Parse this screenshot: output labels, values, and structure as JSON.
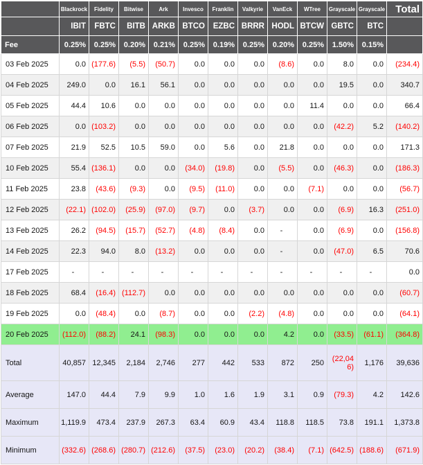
{
  "colors": {
    "header_bg": "#58585a",
    "header_text": "#ffffff",
    "negative_text": "#ff0000",
    "highlight_green": "#90ee90",
    "summary_bg": "#e7e7f7",
    "zebra_bg": "#f0f0f0",
    "border": "#d6d6d6"
  },
  "chart_data": {
    "type": "table",
    "fee_label": "Fee",
    "total_label": "Total",
    "columns": [
      {
        "company": "Blackrock",
        "ticker": "IBIT",
        "fee": "0.25%"
      },
      {
        "company": "Fidelity",
        "ticker": "FBTC",
        "fee": "0.25%"
      },
      {
        "company": "Bitwise",
        "ticker": "BITB",
        "fee": "0.20%"
      },
      {
        "company": "Ark",
        "ticker": "ARKB",
        "fee": "0.21%"
      },
      {
        "company": "Invesco",
        "ticker": "BTCO",
        "fee": "0.25%"
      },
      {
        "company": "Franklin",
        "ticker": "EZBC",
        "fee": "0.19%"
      },
      {
        "company": "Valkyrie",
        "ticker": "BRRR",
        "fee": "0.25%"
      },
      {
        "company": "VanEck",
        "ticker": "HODL",
        "fee": "0.20%"
      },
      {
        "company": "WTree",
        "ticker": "BTCW",
        "fee": "0.25%"
      },
      {
        "company": "Grayscale",
        "ticker": "GBTC",
        "fee": "1.50%"
      },
      {
        "company": "Grayscale",
        "ticker": "BTC",
        "fee": "0.15%"
      }
    ],
    "rows": [
      {
        "date": "03 Feb 2025",
        "highlight": false,
        "values": [
          "0.0",
          "(177.6)",
          "(5.5)",
          "(50.7)",
          "0.0",
          "0.0",
          "0.0",
          "(8.6)",
          "0.0",
          "8.0",
          "0.0",
          "(234.4)"
        ]
      },
      {
        "date": "04 Feb 2025",
        "highlight": false,
        "values": [
          "249.0",
          "0.0",
          "16.1",
          "56.1",
          "0.0",
          "0.0",
          "0.0",
          "0.0",
          "0.0",
          "19.5",
          "0.0",
          "340.7"
        ]
      },
      {
        "date": "05 Feb 2025",
        "highlight": false,
        "values": [
          "44.4",
          "10.6",
          "0.0",
          "0.0",
          "0.0",
          "0.0",
          "0.0",
          "0.0",
          "11.4",
          "0.0",
          "0.0",
          "66.4"
        ]
      },
      {
        "date": "06 Feb 2025",
        "highlight": false,
        "values": [
          "0.0",
          "(103.2)",
          "0.0",
          "0.0",
          "0.0",
          "0.0",
          "0.0",
          "0.0",
          "0.0",
          "(42.2)",
          "5.2",
          "(140.2)"
        ]
      },
      {
        "date": "07 Feb 2025",
        "highlight": false,
        "values": [
          "21.9",
          "52.5",
          "10.5",
          "59.0",
          "0.0",
          "5.6",
          "0.0",
          "21.8",
          "0.0",
          "0.0",
          "0.0",
          "171.3"
        ]
      },
      {
        "date": "10 Feb 2025",
        "highlight": false,
        "values": [
          "55.4",
          "(136.1)",
          "0.0",
          "0.0",
          "(34.0)",
          "(19.8)",
          "0.0",
          "(5.5)",
          "0.0",
          "(46.3)",
          "0.0",
          "(186.3)"
        ]
      },
      {
        "date": "11 Feb 2025",
        "highlight": false,
        "values": [
          "23.8",
          "(43.6)",
          "(9.3)",
          "0.0",
          "(9.5)",
          "(11.0)",
          "0.0",
          "0.0",
          "(7.1)",
          "0.0",
          "0.0",
          "(56.7)"
        ]
      },
      {
        "date": "12 Feb 2025",
        "highlight": false,
        "values": [
          "(22.1)",
          "(102.0)",
          "(25.9)",
          "(97.0)",
          "(9.7)",
          "0.0",
          "(3.7)",
          "0.0",
          "0.0",
          "(6.9)",
          "16.3",
          "(251.0)"
        ]
      },
      {
        "date": "13 Feb 2025",
        "highlight": false,
        "values": [
          "26.2",
          "(94.5)",
          "(15.7)",
          "(52.7)",
          "(4.8)",
          "(8.4)",
          "0.0",
          "-",
          "0.0",
          "(6.9)",
          "0.0",
          "(156.8)"
        ]
      },
      {
        "date": "14 Feb 2025",
        "highlight": false,
        "values": [
          "22.3",
          "94.0",
          "8.0",
          "(13.2)",
          "0.0",
          "0.0",
          "0.0",
          "-",
          "0.0",
          "(47.0)",
          "6.5",
          "70.6"
        ]
      },
      {
        "date": "17 Feb 2025",
        "highlight": false,
        "values": [
          "-",
          "-",
          "-",
          "-",
          "-",
          "-",
          "-",
          "-",
          "-",
          "-",
          "-",
          "0.0"
        ]
      },
      {
        "date": "18 Feb 2025",
        "highlight": false,
        "values": [
          "68.4",
          "(16.4)",
          "(112.7)",
          "0.0",
          "0.0",
          "0.0",
          "0.0",
          "0.0",
          "0.0",
          "0.0",
          "0.0",
          "(60.7)"
        ]
      },
      {
        "date": "19 Feb 2025",
        "highlight": false,
        "values": [
          "0.0",
          "(48.4)",
          "0.0",
          "(8.7)",
          "0.0",
          "0.0",
          "(2.2)",
          "(4.8)",
          "0.0",
          "0.0",
          "0.0",
          "(64.1)"
        ]
      },
      {
        "date": "20 Feb 2025",
        "highlight": true,
        "values": [
          "(112.0)",
          "(88.2)",
          "24.1",
          "(98.3)",
          "0.0",
          "0.0",
          "0.0",
          "4.2",
          "0.0",
          "(33.5)",
          "(61.1)",
          "(364.8)"
        ]
      }
    ],
    "summary": [
      {
        "label": "Total",
        "values": [
          "40,857",
          "12,345",
          "2,184",
          "2,746",
          "277",
          "442",
          "533",
          "872",
          "250",
          "(22,046)",
          "1,176",
          "39,636"
        ]
      },
      {
        "label": "Average",
        "values": [
          "147.0",
          "44.4",
          "7.9",
          "9.9",
          "1.0",
          "1.6",
          "1.9",
          "3.1",
          "0.9",
          "(79.3)",
          "4.2",
          "142.6"
        ]
      },
      {
        "label": "Maximum",
        "values": [
          "1,119.9",
          "473.4",
          "237.9",
          "267.3",
          "63.4",
          "60.9",
          "43.4",
          "118.8",
          "118.5",
          "73.8",
          "191.1",
          "1,373.8"
        ]
      },
      {
        "label": "Minimum",
        "values": [
          "(332.6)",
          "(268.6)",
          "(280.7)",
          "(212.6)",
          "(37.5)",
          "(23.0)",
          "(20.2)",
          "(38.4)",
          "(7.1)",
          "(642.5)",
          "(188.6)",
          "(671.9)"
        ]
      }
    ]
  }
}
